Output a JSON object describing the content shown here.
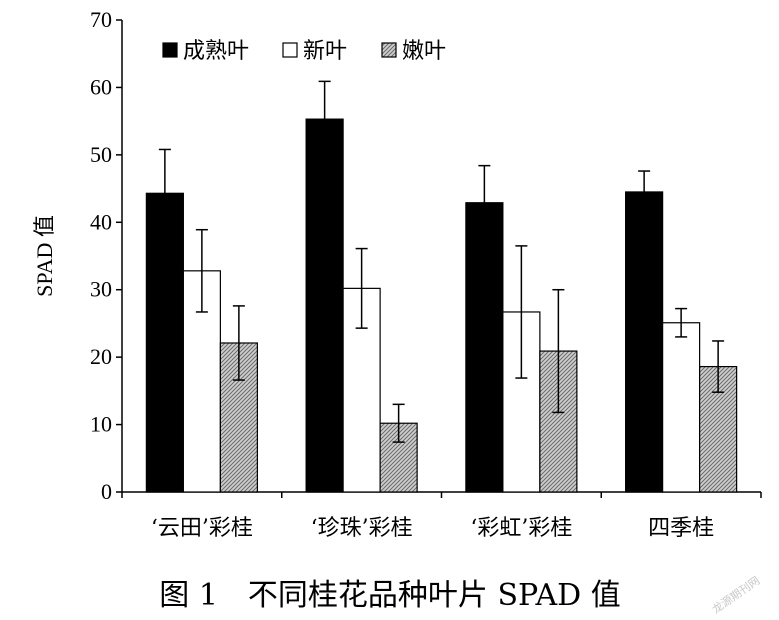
{
  "chart_data": {
    "type": "bar",
    "title": "",
    "xlabel": "",
    "ylabel": "SPAD 值",
    "ylim": [
      0,
      70
    ],
    "yticks": [
      0,
      10,
      20,
      30,
      40,
      50,
      60,
      70
    ],
    "categories": [
      "‘云田’彩桂",
      "‘珍珠’彩桂",
      "‘彩虹’彩桂",
      "四季桂"
    ],
    "series": [
      {
        "name": "成熟叶",
        "fill": "#000000",
        "values": [
          44.3,
          55.3,
          42.9,
          44.5
        ],
        "errors": [
          6.5,
          5.6,
          5.5,
          3.1
        ]
      },
      {
        "name": "新叶",
        "fill": "#ffffff",
        "values": [
          32.8,
          30.2,
          26.7,
          25.1
        ],
        "errors": [
          6.1,
          5.9,
          9.8,
          2.1
        ]
      },
      {
        "name": "嫩叶",
        "fill": "hatch",
        "values": [
          22.1,
          10.2,
          20.9,
          18.6
        ],
        "errors": [
          5.5,
          2.8,
          9.1,
          3.8
        ]
      }
    ],
    "legend_position": "top",
    "grid": false
  },
  "caption": "图 1　不同桂花品种叶片 SPAD 值",
  "watermark": "龙源期刊网",
  "colors": {
    "axis": "#000000",
    "mature_leaf": "#000000",
    "new_leaf": "#ffffff",
    "tender_leaf_hatch_bg": "#cfcfcf",
    "tender_leaf_hatch_line": "#6a6a6a"
  }
}
